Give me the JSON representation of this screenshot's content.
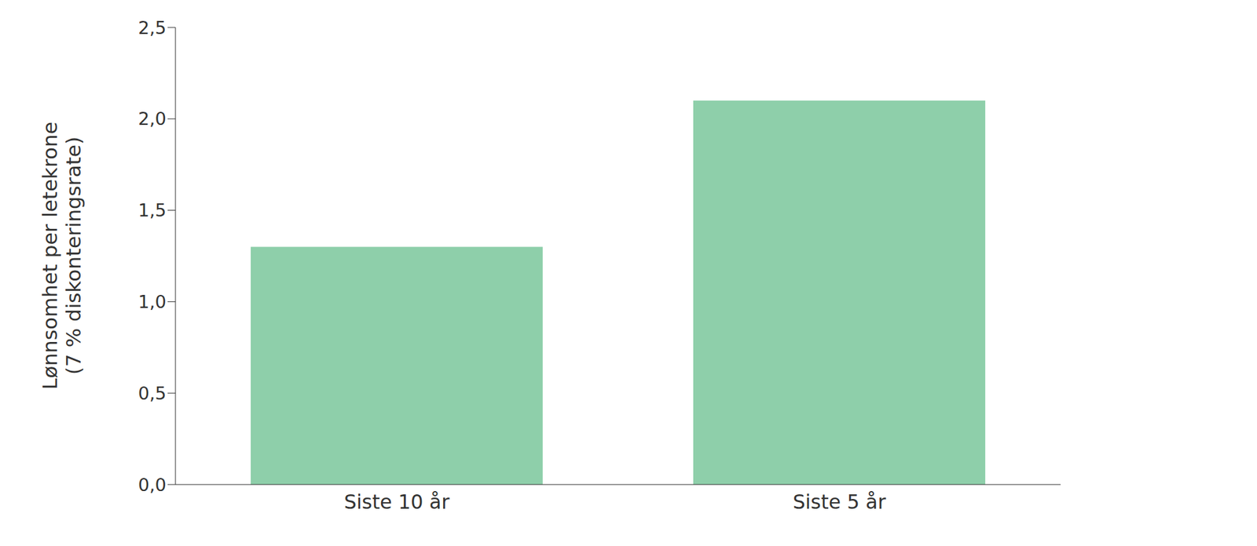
{
  "chart_data": {
    "type": "bar",
    "y_label": "Lønnsomhet per letekrone (7 % diskonteringsrate)",
    "categories": [
      "Siste 10 år",
      "Siste 5 år"
    ],
    "values": [
      1.3,
      2.1
    ],
    "color": "#8ecfaa",
    "ylim": [
      0,
      2.5
    ],
    "yticks": [
      {
        "value": 0,
        "label": "0,0"
      },
      {
        "value": 0.5,
        "label": "0,5"
      },
      {
        "value": 1,
        "label": "1,0"
      },
      {
        "value": 1.5,
        "label": "1,5"
      },
      {
        "value": 2,
        "label": "2,0"
      },
      {
        "value": 2.5,
        "label": "2,5"
      }
    ],
    "grid": false
  }
}
